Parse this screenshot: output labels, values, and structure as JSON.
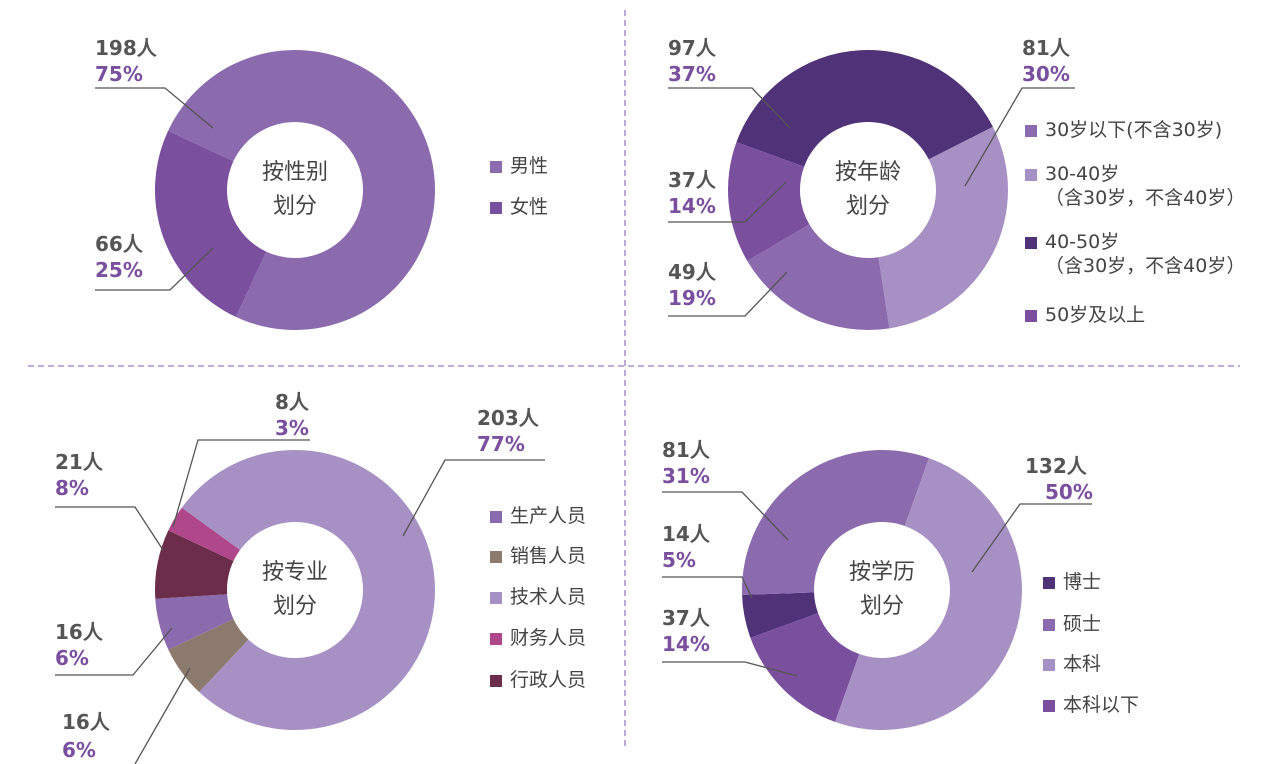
{
  "chart_data": [
    {
      "type": "pie",
      "donut": true,
      "title": "按性别\n划分",
      "categories": [
        "男性",
        "女性"
      ],
      "values": [
        75,
        25
      ],
      "value_labels": [
        "75%",
        "25%"
      ],
      "counts": [
        198,
        66
      ],
      "count_labels": [
        "198人",
        "66人"
      ],
      "colors": [
        "#8b6aae",
        "#7a4f9e"
      ]
    },
    {
      "type": "pie",
      "donut": true,
      "title": "按年龄\n划分",
      "categories": [
        "30岁以下(不含30岁)",
        "30-40岁\n（含30岁，不含40岁）",
        "40-50岁\n（含30岁，不含40岁）",
        "50岁及以上"
      ],
      "values": [
        19,
        30,
        37,
        14
      ],
      "value_labels": [
        "19%",
        "30%",
        "37%",
        "14%"
      ],
      "counts": [
        49,
        81,
        97,
        37
      ],
      "count_labels": [
        "49人",
        "81人",
        "97人",
        "37人"
      ],
      "colors": [
        "#8b6aae",
        "#a791c4",
        "#4f3278",
        "#7a4f9e"
      ]
    },
    {
      "type": "pie",
      "donut": true,
      "title": "按专业\n划分",
      "categories": [
        "生产人员",
        "销售人员",
        "技术人员",
        "财务人员",
        "行政人员"
      ],
      "values": [
        6,
        6,
        77,
        3,
        8
      ],
      "value_labels": [
        "6%",
        "6%",
        "77%",
        "3%",
        "8%"
      ],
      "counts": [
        16,
        16,
        203,
        8,
        21
      ],
      "count_labels": [
        "16人",
        "16人",
        "203人",
        "8人",
        "21人"
      ],
      "colors": [
        "#8b6aae",
        "#8c7a6e",
        "#a791c4",
        "#b0478a",
        "#6b2d4a"
      ]
    },
    {
      "type": "pie",
      "donut": true,
      "title": "按学历\n划分",
      "categories": [
        "博士",
        "硕士",
        "本科",
        "本科以下"
      ],
      "values": [
        5,
        31,
        50,
        14
      ],
      "value_labels": [
        "5%",
        "31%",
        "50%",
        "14%"
      ],
      "counts": [
        14,
        81,
        132,
        37
      ],
      "count_labels": [
        "14人",
        "81人",
        "132人",
        "37人"
      ],
      "colors": [
        "#4f3278",
        "#8b6aae",
        "#a791c4",
        "#7a4f9e"
      ]
    }
  ]
}
